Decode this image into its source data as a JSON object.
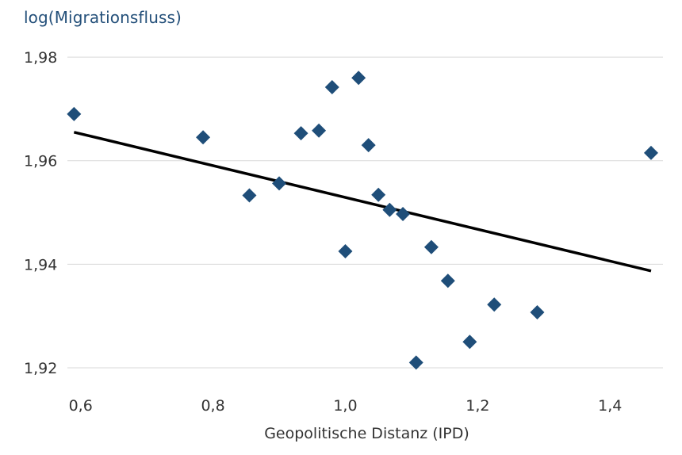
{
  "chart_data": {
    "type": "scatter",
    "xlabel": "Geopolitische Distanz (IPD)",
    "ylabel": "log(Migrationsfluss)",
    "xlim": [
      0.58,
      1.48
    ],
    "ylim": [
      1.918,
      1.982
    ],
    "x_ticks": [
      0.6,
      0.8,
      1.0,
      1.2,
      1.4
    ],
    "x_tick_labels": [
      "0,6",
      "0,8",
      "1,0",
      "1,2",
      "1,4"
    ],
    "y_ticks": [
      1.92,
      1.94,
      1.96,
      1.98
    ],
    "y_tick_labels": [
      "1,92",
      "1,94",
      "1,96",
      "1,98"
    ],
    "grid": true,
    "series": [
      {
        "marker": "diamond",
        "color": "#1f4e79",
        "points": [
          {
            "x": 0.59,
            "y": 1.969
          },
          {
            "x": 0.785,
            "y": 1.9645
          },
          {
            "x": 0.855,
            "y": 1.9533
          },
          {
            "x": 0.9,
            "y": 1.9556
          },
          {
            "x": 0.933,
            "y": 1.9653
          },
          {
            "x": 0.96,
            "y": 1.9658
          },
          {
            "x": 0.98,
            "y": 1.9742
          },
          {
            "x": 1.0,
            "y": 1.9425
          },
          {
            "x": 1.02,
            "y": 1.976
          },
          {
            "x": 1.035,
            "y": 1.963
          },
          {
            "x": 1.05,
            "y": 1.9534
          },
          {
            "x": 1.067,
            "y": 1.9505
          },
          {
            "x": 1.087,
            "y": 1.9497
          },
          {
            "x": 1.107,
            "y": 1.921
          },
          {
            "x": 1.13,
            "y": 1.9433
          },
          {
            "x": 1.155,
            "y": 1.9368
          },
          {
            "x": 1.188,
            "y": 1.925
          },
          {
            "x": 1.225,
            "y": 1.9322
          },
          {
            "x": 1.29,
            "y": 1.9307
          },
          {
            "x": 1.462,
            "y": 1.9615
          }
        ]
      }
    ],
    "trend_line": {
      "color": "#000000",
      "x": [
        0.59,
        1.462
      ],
      "y": [
        1.9655,
        1.9387
      ]
    }
  }
}
